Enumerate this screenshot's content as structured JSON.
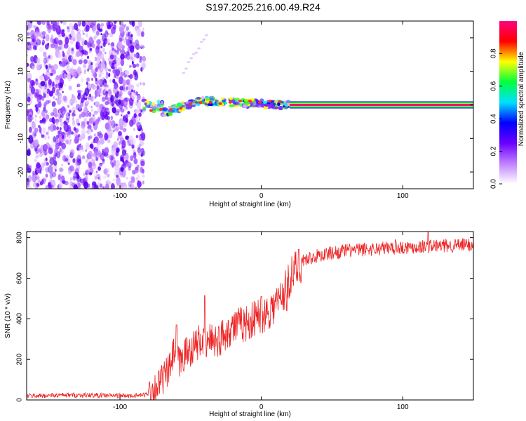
{
  "title": "S197.2025.216.00.49.R24",
  "chart_data": [
    {
      "type": "heatmap",
      "xlabel": "Height of straight line (km)",
      "ylabel": "Frequency (Hz)",
      "xlim": [
        -166,
        150
      ],
      "ylim": [
        -25,
        25
      ],
      "x_ticks": [
        -100,
        0,
        100
      ],
      "y_ticks": [
        -20,
        -10,
        0,
        10,
        20
      ],
      "colorbar": {
        "label": "Normalized spectral amplitude",
        "range": [
          0,
          1
        ],
        "ticks": [
          0.0,
          0.2,
          0.4,
          0.6,
          0.8
        ],
        "colormap": [
          "#ffffff",
          "#c080ff",
          "#6a00ff",
          "#0000ff",
          "#00e0ff",
          "#00ff40",
          "#ffff00",
          "#ff0000",
          "#ff0080"
        ]
      },
      "features": {
        "noise_region_x": [
          -166,
          -83
        ],
        "scattered_tone_x": [
          -83,
          20
        ],
        "steady_tone_x": [
          20,
          150
        ],
        "steady_tone_frequency": 0
      }
    },
    {
      "type": "line",
      "xlabel": "Height of straight line (km)",
      "ylabel": "SNR (10 * v/v)",
      "xlim": [
        -166,
        150
      ],
      "ylim": [
        0,
        830
      ],
      "x_ticks": [
        -100,
        0,
        100
      ],
      "y_ticks": [
        0,
        200,
        400,
        600,
        800
      ],
      "series": [
        {
          "color": "#ee2222",
          "x": [
            -166,
            -150,
            -130,
            -110,
            -90,
            -82,
            -75,
            -70,
            -65,
            -62,
            -58,
            -55,
            -50,
            -45,
            -42,
            -40,
            -35,
            -30,
            -25,
            -20,
            -15,
            -10,
            -5,
            0,
            5,
            10,
            15,
            18,
            20,
            25,
            30,
            40,
            50,
            60,
            70,
            80,
            90,
            100,
            110,
            120,
            130,
            140,
            150
          ],
          "y": [
            20,
            22,
            24,
            22,
            20,
            25,
            60,
            100,
            150,
            230,
            180,
            220,
            250,
            280,
            300,
            260,
            310,
            290,
            340,
            360,
            370,
            380,
            400,
            420,
            440,
            470,
            520,
            560,
            600,
            650,
            690,
            710,
            725,
            735,
            740,
            745,
            750,
            752,
            755,
            758,
            760,
            762,
            765
          ],
          "spikes": [
            [
              -60,
              370
            ],
            [
              -40,
              515
            ],
            [
              0,
              510
            ],
            [
              18,
              440
            ],
            [
              95,
              790
            ],
            [
              118,
              830
            ]
          ]
        }
      ]
    }
  ]
}
